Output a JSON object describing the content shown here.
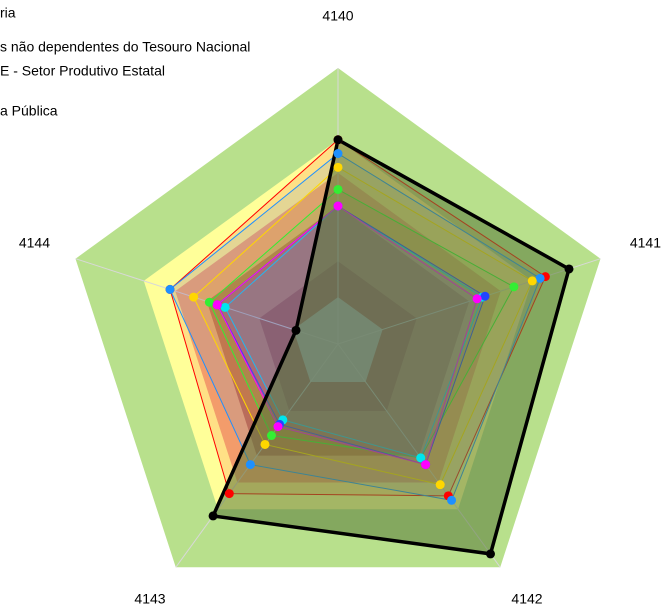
{
  "chart_data": {
    "type": "radar",
    "categories": [
      "4140",
      "4141",
      "4142",
      "4143",
      "4144"
    ],
    "rlim": [
      0,
      1
    ],
    "legend": [
      "ria",
      "s não dependentes do Tesouro Nacional",
      "E - Setor Produtivo Estatal",
      "a Pública"
    ],
    "bands": [
      {
        "color": "#b8e08c",
        "value": 1.0
      },
      {
        "color": "#ffff99",
        "value": 0.74
      },
      {
        "color": "#f2b27a",
        "value": 0.62
      },
      {
        "color": "#c8764f",
        "value": 0.5
      },
      {
        "color": "#a5412a",
        "value": 0.3
      },
      {
        "color": "#c0c0c0",
        "value": 0.17
      }
    ],
    "series": [
      {
        "color": "#ff0000",
        "values": [
          0.74,
          0.79,
          0.68,
          0.67,
          0.64
        ]
      },
      {
        "color": "#1e90ff",
        "values": [
          0.69,
          0.77,
          0.7,
          0.54,
          0.64
        ]
      },
      {
        "color": "#ffd700",
        "values": [
          0.64,
          0.74,
          0.63,
          0.45,
          0.55
        ]
      },
      {
        "color": "#33ee33",
        "values": [
          0.56,
          0.67,
          0.51,
          0.41,
          0.49
        ]
      },
      {
        "color": "#00e5ee",
        "values": [
          0.5,
          0.55,
          0.51,
          0.34,
          0.43
        ]
      },
      {
        "color": "#2244ff",
        "values": [
          0.5,
          0.56,
          0.54,
          0.36,
          0.46
        ]
      },
      {
        "color": "#ff00ff",
        "values": [
          0.5,
          0.53,
          0.54,
          0.37,
          0.46
        ]
      },
      {
        "color": "#000000",
        "fill": "#5a7a3a",
        "values": [
          0.74,
          0.88,
          0.94,
          0.77,
          0.16
        ]
      }
    ]
  }
}
